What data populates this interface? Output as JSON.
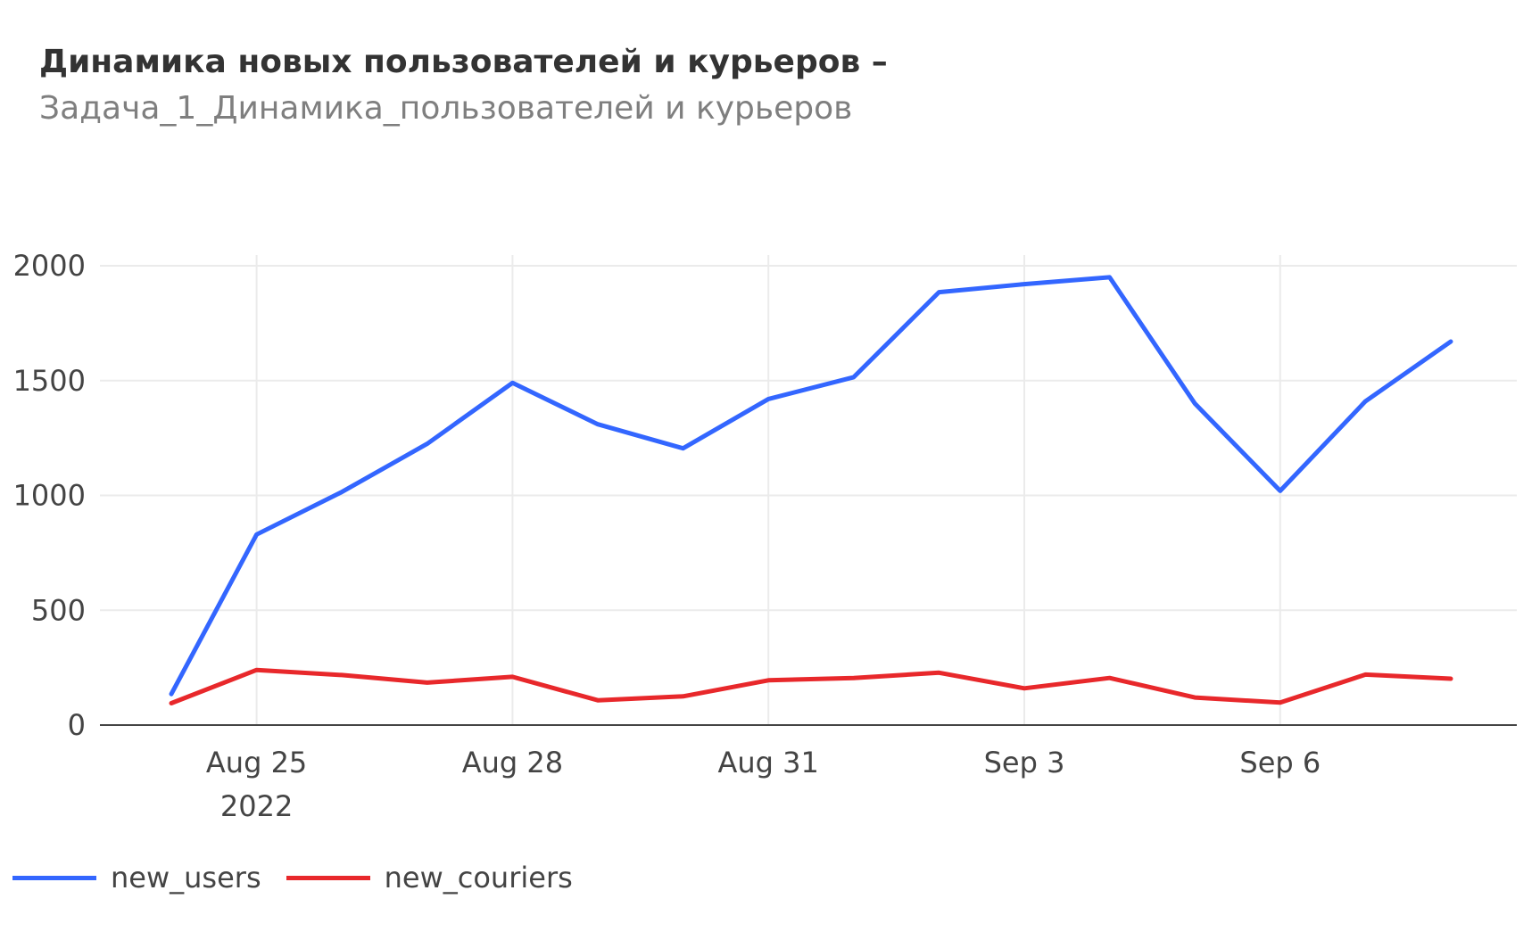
{
  "header": {
    "title": "Динамика новых пользователей и курьеров  –",
    "subtitle": "Задача_1_Динамика_пользователей и курьеров"
  },
  "chart_data": {
    "type": "line",
    "x": [
      "2022-08-24",
      "2022-08-25",
      "2022-08-26",
      "2022-08-27",
      "2022-08-28",
      "2022-08-29",
      "2022-08-30",
      "2022-08-31",
      "2022-09-01",
      "2022-09-02",
      "2022-09-03",
      "2022-09-04",
      "2022-09-05",
      "2022-09-06",
      "2022-09-07",
      "2022-09-08"
    ],
    "x_ticks": [
      {
        "date": "2022-08-25",
        "label": "Aug 25",
        "sublabel": "2022"
      },
      {
        "date": "2022-08-28",
        "label": "Aug 28",
        "sublabel": ""
      },
      {
        "date": "2022-08-31",
        "label": "Aug 31",
        "sublabel": ""
      },
      {
        "date": "2022-09-03",
        "label": "Sep 3",
        "sublabel": ""
      },
      {
        "date": "2022-09-06",
        "label": "Sep 6",
        "sublabel": ""
      }
    ],
    "y_ticks": [
      0,
      500,
      1000,
      1500,
      2000
    ],
    "ylim": [
      0,
      2000
    ],
    "grid": true,
    "legend_position": "bottom-left",
    "series": [
      {
        "name": "new_users",
        "color": "#3366ff",
        "values": [
          135,
          830,
          1015,
          1225,
          1490,
          1310,
          1205,
          1420,
          1515,
          1885,
          1920,
          1950,
          1400,
          1020,
          1410,
          1670
        ]
      },
      {
        "name": "new_couriers",
        "color": "#e8282b",
        "values": [
          95,
          240,
          218,
          185,
          210,
          108,
          125,
          195,
          205,
          228,
          160,
          205,
          120,
          98,
          220,
          202
        ]
      }
    ]
  }
}
